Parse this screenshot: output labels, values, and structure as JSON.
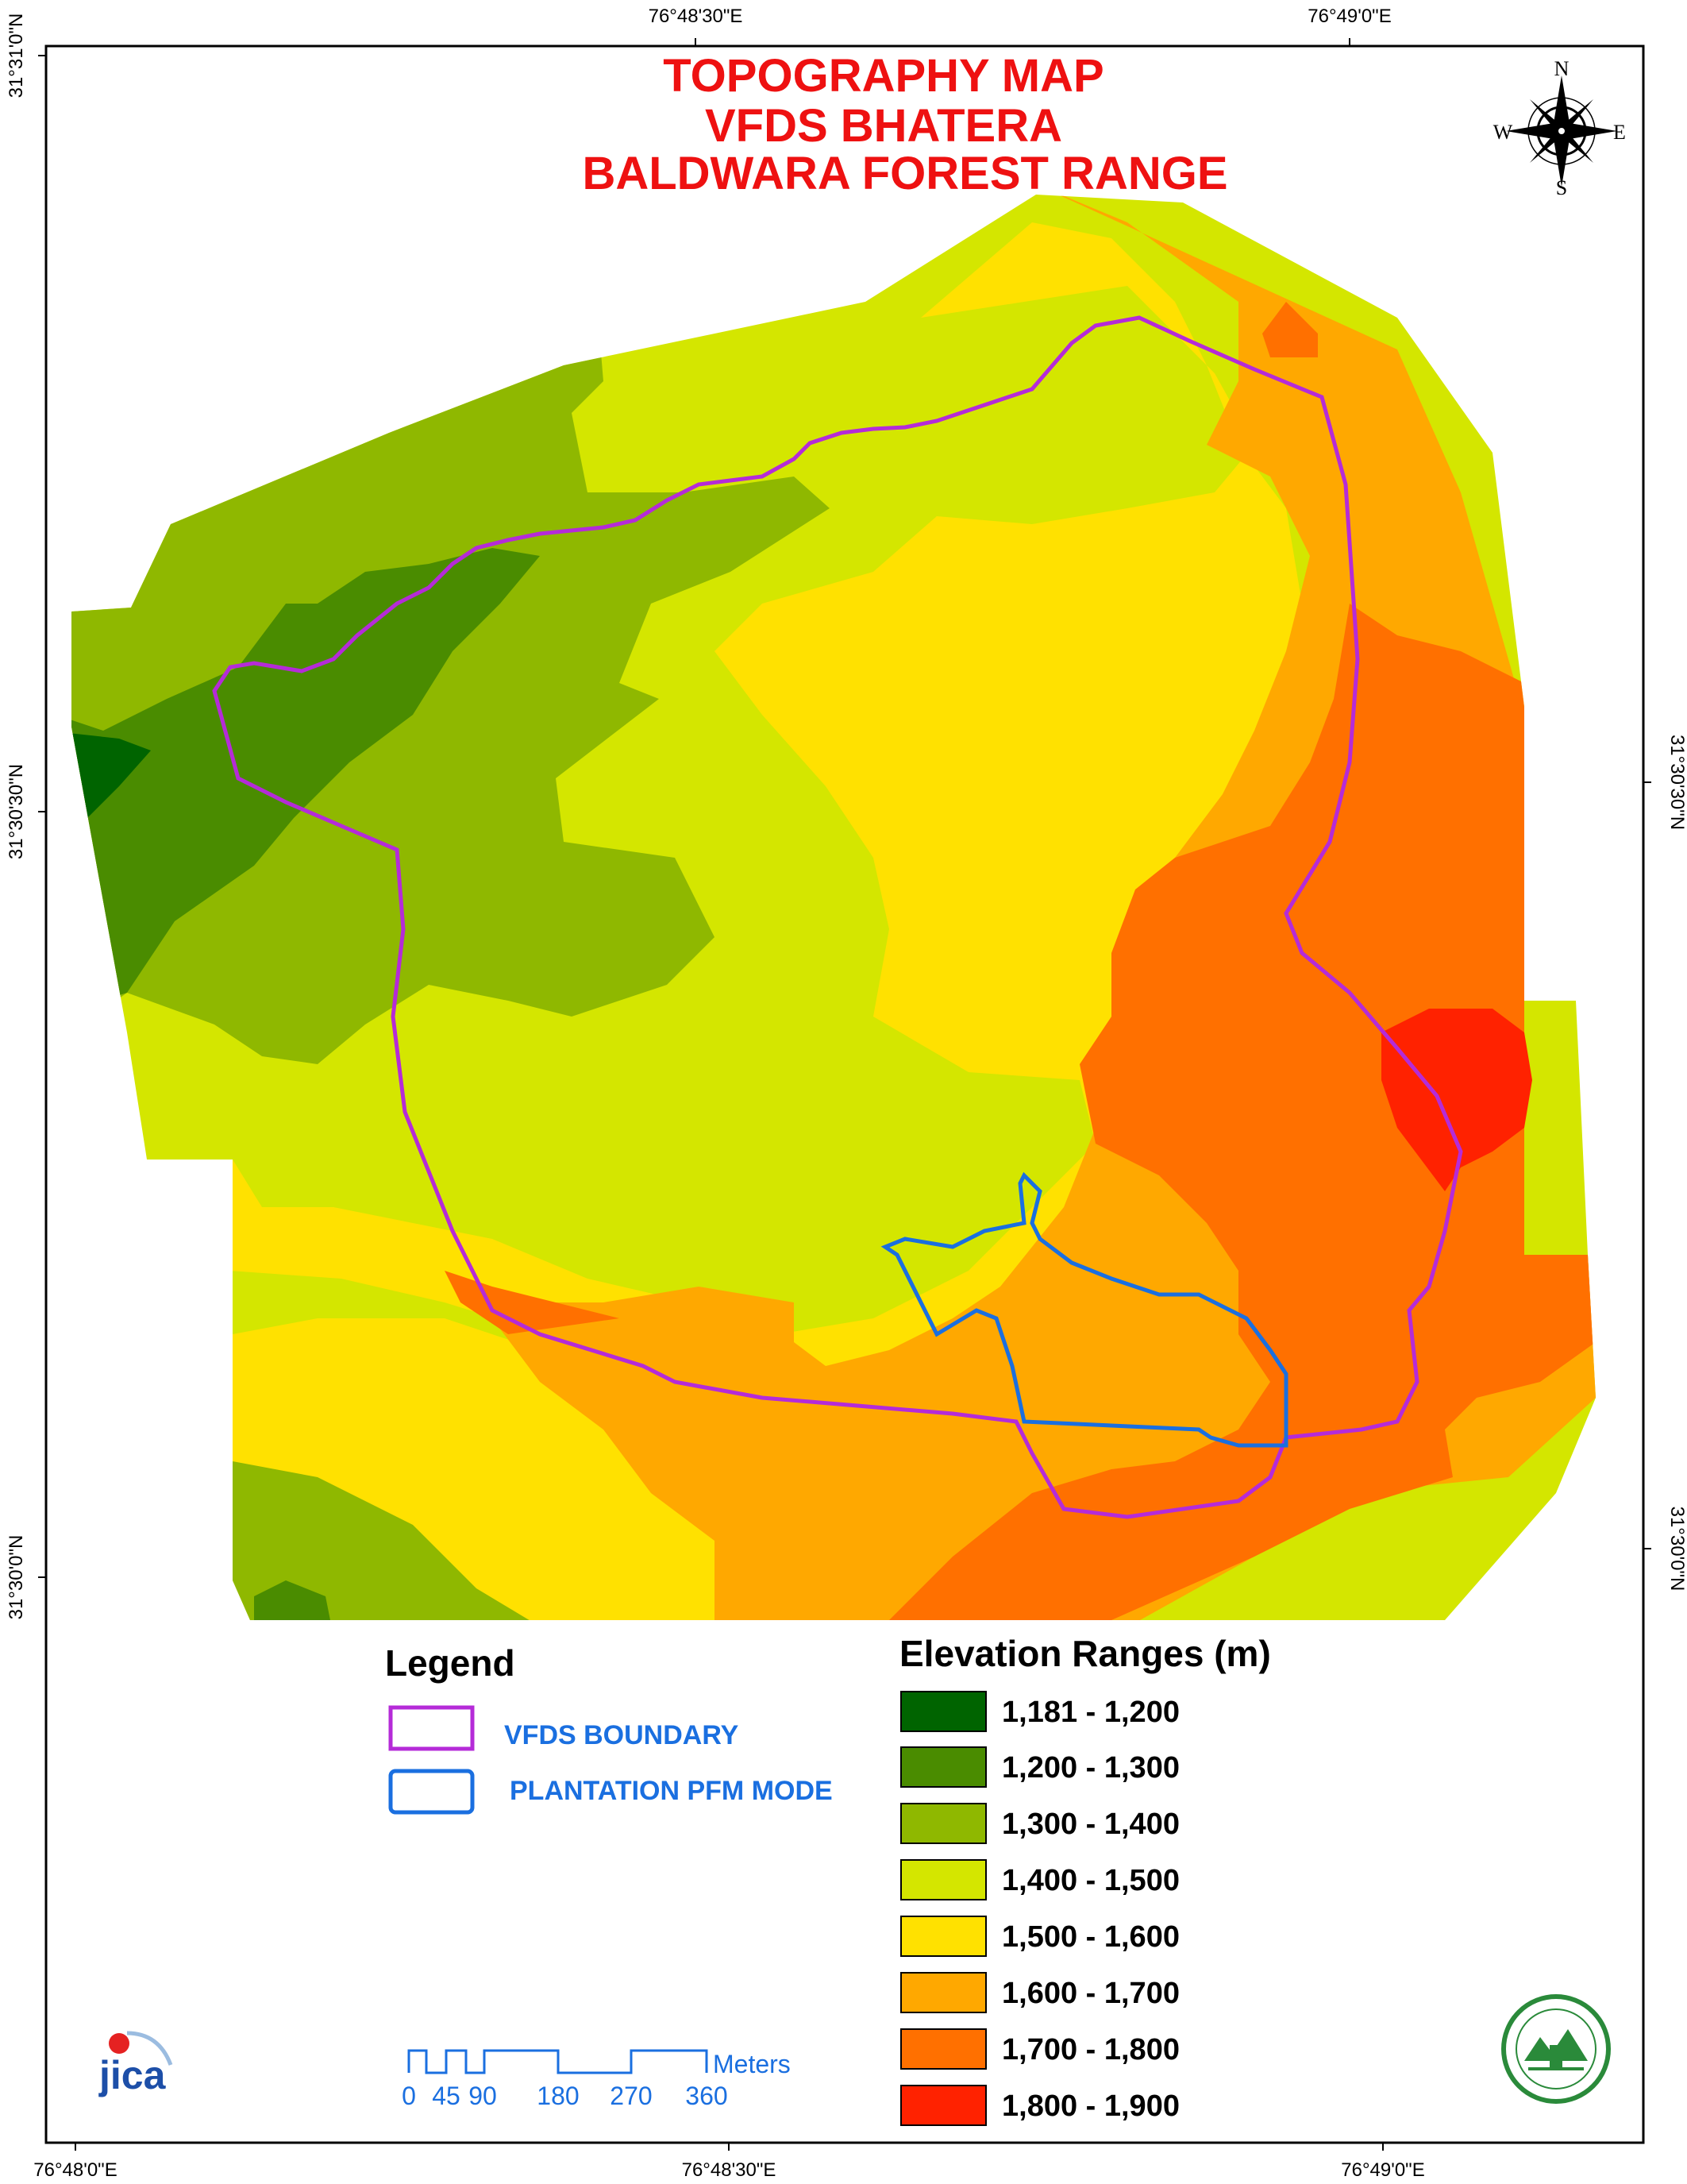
{
  "title": {
    "line1": "TOPOGRAPHY MAP",
    "line2": "VFDS BHATERA",
    "line3": "BALDWARA FOREST RANGE"
  },
  "coords": {
    "top_left": "76°48'30\"E",
    "top_right": "76°49'0\"E",
    "bottom_1": "76°48'0\"E",
    "bottom_2": "76°48'30\"E",
    "bottom_3": "76°49'0\"E",
    "left_1": "31°31'0\"N",
    "left_2": "31°30'30\"N",
    "left_3": "31°30'0\"N",
    "right_1": "31°30'30\"N",
    "right_2": "31°30'0\"N"
  },
  "compass": {
    "n": "N",
    "s": "S",
    "e": "E",
    "w": "W"
  },
  "legend": {
    "heading": "Legend",
    "items": [
      {
        "label": "VFDS BOUNDARY",
        "color": "#b52bd8"
      },
      {
        "label": "PLANTATION PFM MODE",
        "color": "#1a6fe0"
      }
    ]
  },
  "elevation": {
    "heading": "Elevation Ranges (m)",
    "ranges": [
      {
        "label": "1,181 - 1,200",
        "color": "#006400"
      },
      {
        "label": "1,200 - 1,300",
        "color": "#4a8c00"
      },
      {
        "label": "1,300 - 1,400",
        "color": "#8fb800"
      },
      {
        "label": "1,400 - 1,500",
        "color": "#d4e600"
      },
      {
        "label": "1,500 - 1,600",
        "color": "#ffe100"
      },
      {
        "label": "1,600 - 1,700",
        "color": "#ffa800"
      },
      {
        "label": "1,700 - 1,800",
        "color": "#ff7000"
      },
      {
        "label": "1,800 - 1,900",
        "color": "#ff2200"
      }
    ]
  },
  "scale": {
    "unit": "Meters",
    "ticks": [
      "0",
      "45",
      "90",
      "180",
      "270",
      "360"
    ]
  },
  "logos": {
    "left": "jica",
    "left_color": "#1d4fa8"
  }
}
